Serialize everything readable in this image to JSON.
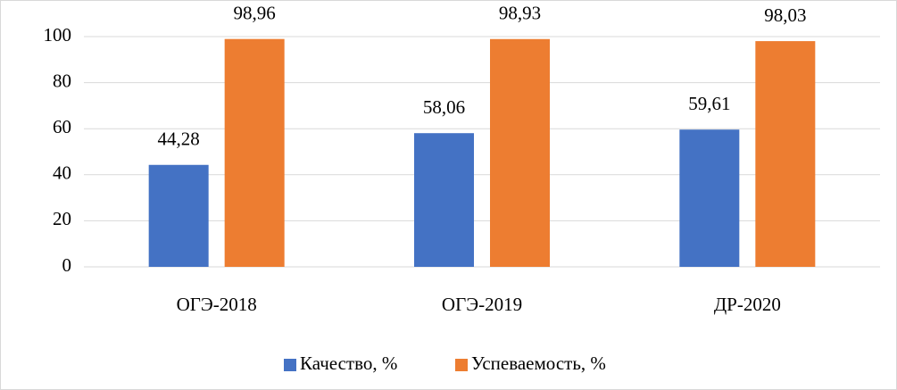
{
  "chart_data": {
    "type": "bar",
    "categories": [
      "ОГЭ-2018",
      "ОГЭ-2019",
      "ДР-2020"
    ],
    "series": [
      {
        "name": "Качество, %",
        "color": "#4472c4",
        "values": [
          44.28,
          58.06,
          59.61
        ],
        "value_labels": [
          "44,28",
          "58,06",
          "59,61"
        ]
      },
      {
        "name": "Успеваемость, %",
        "color": "#ed7d31",
        "values": [
          98.96,
          98.93,
          98.03
        ],
        "value_labels": [
          "98,96",
          "98,93",
          "98,03"
        ]
      }
    ],
    "ylim": [
      0,
      100
    ],
    "yticks": [
      0,
      20,
      40,
      60,
      80,
      100
    ],
    "grid": true,
    "legend": "bottom"
  }
}
